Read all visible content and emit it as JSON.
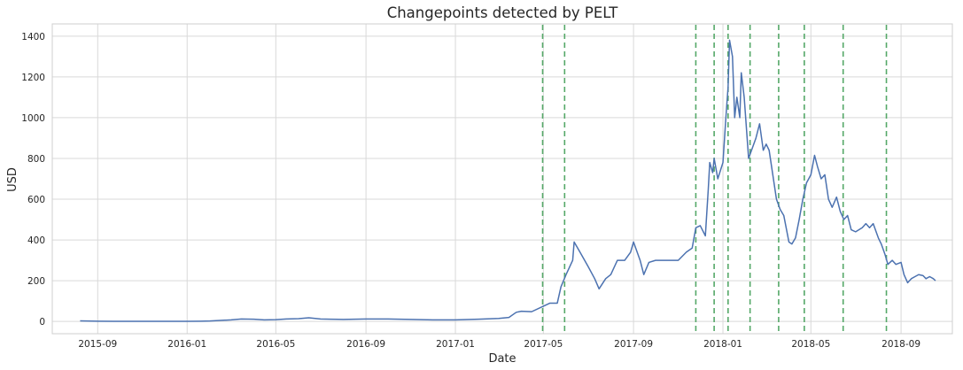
{
  "chart_data": {
    "type": "line",
    "title": "Changepoints detected by PELT",
    "xlabel": "Date",
    "ylabel": "USD",
    "ylim": [
      -60,
      1460
    ],
    "xlim": [
      "2015-07-01",
      "2018-11-10"
    ],
    "grid": true,
    "y_ticks": [
      0,
      200,
      400,
      600,
      800,
      1000,
      1200,
      1400
    ],
    "x_ticks": [
      "2015-09",
      "2016-01",
      "2016-05",
      "2016-09",
      "2017-01",
      "2017-05",
      "2017-09",
      "2018-01",
      "2018-05",
      "2018-09"
    ],
    "colors": {
      "series": "#4c72b0",
      "changepoint": "#55a868"
    },
    "series": [
      {
        "points": [
          [
            "2015-08-08",
            2.8
          ],
          [
            "2015-09-01",
            1.3
          ],
          [
            "2015-10-01",
            0.6
          ],
          [
            "2015-11-01",
            1.0
          ],
          [
            "2015-12-01",
            0.9
          ],
          [
            "2016-01-01",
            0.95
          ],
          [
            "2016-01-20",
            1.5
          ],
          [
            "2016-02-01",
            2.5
          ],
          [
            "2016-02-15",
            5
          ],
          [
            "2016-03-01",
            8
          ],
          [
            "2016-03-15",
            12
          ],
          [
            "2016-04-01",
            11
          ],
          [
            "2016-04-15",
            8
          ],
          [
            "2016-05-01",
            9
          ],
          [
            "2016-05-15",
            12
          ],
          [
            "2016-06-01",
            14
          ],
          [
            "2016-06-15",
            18
          ],
          [
            "2016-07-01",
            12
          ],
          [
            "2016-07-15",
            11
          ],
          [
            "2016-08-01",
            10
          ],
          [
            "2016-09-01",
            12
          ],
          [
            "2016-10-01",
            12
          ],
          [
            "2016-11-01",
            10
          ],
          [
            "2016-12-01",
            8
          ],
          [
            "2017-01-01",
            8
          ],
          [
            "2017-02-01",
            11
          ],
          [
            "2017-03-01",
            15
          ],
          [
            "2017-03-15",
            20
          ],
          [
            "2017-03-25",
            45
          ],
          [
            "2017-04-01",
            50
          ],
          [
            "2017-04-15",
            48
          ],
          [
            "2017-05-01",
            75
          ],
          [
            "2017-05-10",
            90
          ],
          [
            "2017-05-20",
            90
          ],
          [
            "2017-05-25",
            170
          ],
          [
            "2017-06-01",
            230
          ],
          [
            "2017-06-10",
            300
          ],
          [
            "2017-06-12",
            390
          ],
          [
            "2017-06-20",
            340
          ],
          [
            "2017-07-01",
            270
          ],
          [
            "2017-07-10",
            210
          ],
          [
            "2017-07-16",
            160
          ],
          [
            "2017-07-25",
            210
          ],
          [
            "2017-08-01",
            230
          ],
          [
            "2017-08-10",
            300
          ],
          [
            "2017-08-20",
            300
          ],
          [
            "2017-08-28",
            340
          ],
          [
            "2017-09-01",
            390
          ],
          [
            "2017-09-10",
            300
          ],
          [
            "2017-09-15",
            230
          ],
          [
            "2017-09-22",
            290
          ],
          [
            "2017-10-01",
            300
          ],
          [
            "2017-10-15",
            300
          ],
          [
            "2017-11-01",
            300
          ],
          [
            "2017-11-12",
            340
          ],
          [
            "2017-11-20",
            360
          ],
          [
            "2017-11-25",
            460
          ],
          [
            "2017-12-01",
            470
          ],
          [
            "2017-12-08",
            420
          ],
          [
            "2017-12-12",
            650
          ],
          [
            "2017-12-14",
            780
          ],
          [
            "2017-12-18",
            730
          ],
          [
            "2017-12-20",
            800
          ],
          [
            "2017-12-25",
            700
          ],
          [
            "2018-01-01",
            780
          ],
          [
            "2018-01-05",
            1000
          ],
          [
            "2018-01-08",
            1150
          ],
          [
            "2018-01-10",
            1380
          ],
          [
            "2018-01-14",
            1300
          ],
          [
            "2018-01-17",
            1000
          ],
          [
            "2018-01-20",
            1100
          ],
          [
            "2018-01-24",
            1000
          ],
          [
            "2018-01-26",
            1220
          ],
          [
            "2018-01-30",
            1100
          ],
          [
            "2018-02-01",
            1000
          ],
          [
            "2018-02-05",
            800
          ],
          [
            "2018-02-10",
            850
          ],
          [
            "2018-02-15",
            900
          ],
          [
            "2018-02-20",
            970
          ],
          [
            "2018-02-25",
            840
          ],
          [
            "2018-03-01",
            870
          ],
          [
            "2018-03-05",
            840
          ],
          [
            "2018-03-10",
            720
          ],
          [
            "2018-03-15",
            600
          ],
          [
            "2018-03-20",
            550
          ],
          [
            "2018-03-25",
            520
          ],
          [
            "2018-04-01",
            390
          ],
          [
            "2018-04-05",
            380
          ],
          [
            "2018-04-10",
            410
          ],
          [
            "2018-04-15",
            500
          ],
          [
            "2018-04-20",
            600
          ],
          [
            "2018-04-25",
            680
          ],
          [
            "2018-05-01",
            720
          ],
          [
            "2018-05-06",
            815
          ],
          [
            "2018-05-10",
            760
          ],
          [
            "2018-05-15",
            700
          ],
          [
            "2018-05-20",
            720
          ],
          [
            "2018-05-25",
            600
          ],
          [
            "2018-05-30",
            560
          ],
          [
            "2018-06-05",
            610
          ],
          [
            "2018-06-10",
            540
          ],
          [
            "2018-06-15",
            500
          ],
          [
            "2018-06-20",
            520
          ],
          [
            "2018-06-25",
            450
          ],
          [
            "2018-07-01",
            440
          ],
          [
            "2018-07-10",
            460
          ],
          [
            "2018-07-15",
            480
          ],
          [
            "2018-07-20",
            460
          ],
          [
            "2018-07-25",
            480
          ],
          [
            "2018-08-01",
            410
          ],
          [
            "2018-08-05",
            380
          ],
          [
            "2018-08-10",
            330
          ],
          [
            "2018-08-14",
            280
          ],
          [
            "2018-08-20",
            300
          ],
          [
            "2018-08-25",
            280
          ],
          [
            "2018-09-01",
            290
          ],
          [
            "2018-09-05",
            230
          ],
          [
            "2018-09-10",
            190
          ],
          [
            "2018-09-15",
            210
          ],
          [
            "2018-09-20",
            220
          ],
          [
            "2018-09-25",
            230
          ],
          [
            "2018-10-01",
            225
          ],
          [
            "2018-10-05",
            210
          ],
          [
            "2018-10-10",
            220
          ],
          [
            "2018-10-15",
            210
          ],
          [
            "2018-10-18",
            200
          ]
        ]
      }
    ],
    "changepoints": [
      "2017-04-30",
      "2017-05-30",
      "2017-11-25",
      "2017-12-20",
      "2018-01-08",
      "2018-02-07",
      "2018-03-18",
      "2018-04-22",
      "2018-06-14",
      "2018-08-12"
    ]
  }
}
